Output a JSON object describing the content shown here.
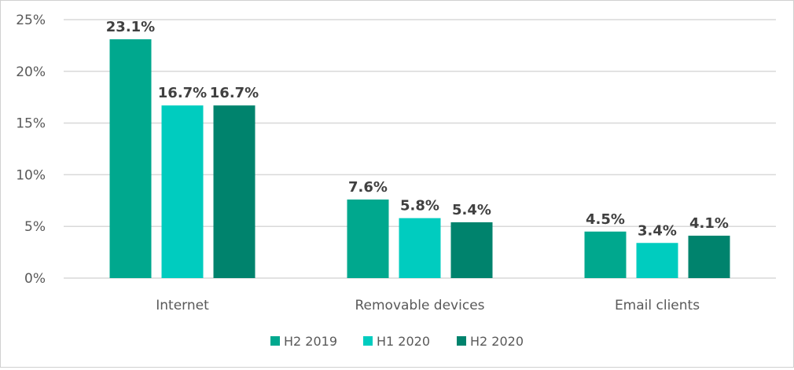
{
  "chart_data": {
    "type": "bar",
    "title": "",
    "xlabel": "",
    "ylabel": "",
    "ylim": [
      0,
      25
    ],
    "yticks": [
      0,
      5,
      10,
      15,
      20,
      25
    ],
    "ytick_labels": [
      "0%",
      "5%",
      "10%",
      "15%",
      "20%",
      "25%"
    ],
    "grid": true,
    "legend_position": "bottom",
    "categories": [
      "Internet",
      "Removable devices",
      "Email clients"
    ],
    "series": [
      {
        "name": "H2 2019",
        "color": "#00A88E",
        "values": [
          23.1,
          7.6,
          4.5
        ],
        "labels": [
          "23.1%",
          "7.6%",
          "4.5%"
        ]
      },
      {
        "name": "H1 2020",
        "color": "#00CCBF",
        "values": [
          16.7,
          5.8,
          3.4
        ],
        "labels": [
          "16.7%",
          "5.8%",
          "3.4%"
        ]
      },
      {
        "name": "H2 2020",
        "color": "#00836D",
        "values": [
          16.7,
          5.4,
          4.1
        ],
        "labels": [
          "16.7%",
          "5.4%",
          "4.1%"
        ]
      }
    ]
  }
}
